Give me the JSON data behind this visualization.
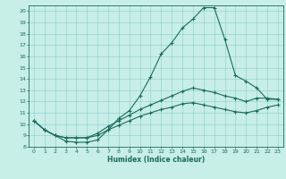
{
  "xlabel": "Humidex (Indice chaleur)",
  "bg_color": "#c8eee8",
  "line_color": "#1a6b5a",
  "grid_color": "#88cccc",
  "xlim": [
    -0.5,
    23.5
  ],
  "ylim": [
    8,
    20.5
  ],
  "xticks": [
    0,
    1,
    2,
    3,
    4,
    5,
    6,
    7,
    8,
    9,
    10,
    11,
    12,
    13,
    14,
    15,
    16,
    17,
    18,
    19,
    20,
    21,
    22,
    23
  ],
  "yticks": [
    8,
    9,
    10,
    11,
    12,
    13,
    14,
    15,
    16,
    17,
    18,
    19,
    20
  ],
  "line1_x": [
    0,
    1,
    2,
    3,
    4,
    5,
    6,
    7,
    8,
    9,
    10,
    11,
    12,
    13,
    14,
    15,
    16,
    17,
    18,
    19,
    20,
    21,
    22,
    23
  ],
  "line1_y": [
    10.3,
    9.5,
    9.0,
    8.5,
    8.4,
    8.4,
    8.6,
    9.5,
    10.5,
    11.2,
    12.5,
    14.2,
    16.2,
    17.2,
    18.5,
    19.3,
    20.3,
    20.3,
    17.5,
    14.3,
    13.8,
    13.2,
    12.2,
    12.2
  ],
  "line2_x": [
    0,
    1,
    2,
    3,
    4,
    5,
    6,
    7,
    8,
    9,
    10,
    11,
    12,
    13,
    14,
    15,
    16,
    17,
    18,
    19,
    20,
    21,
    22,
    23
  ],
  "line2_y": [
    10.3,
    9.5,
    9.0,
    8.8,
    8.8,
    8.8,
    9.2,
    9.8,
    10.3,
    10.8,
    11.3,
    11.7,
    12.1,
    12.5,
    12.9,
    13.2,
    13.0,
    12.8,
    12.5,
    12.3,
    12.0,
    12.3,
    12.3,
    12.2
  ],
  "line3_x": [
    0,
    1,
    2,
    3,
    4,
    5,
    6,
    7,
    8,
    9,
    10,
    11,
    12,
    13,
    14,
    15,
    16,
    17,
    18,
    19,
    20,
    21,
    22,
    23
  ],
  "line3_y": [
    10.3,
    9.5,
    9.0,
    8.8,
    8.8,
    8.8,
    9.0,
    9.5,
    9.9,
    10.3,
    10.7,
    11.0,
    11.3,
    11.5,
    11.8,
    11.9,
    11.7,
    11.5,
    11.3,
    11.1,
    11.0,
    11.2,
    11.5,
    11.7
  ]
}
